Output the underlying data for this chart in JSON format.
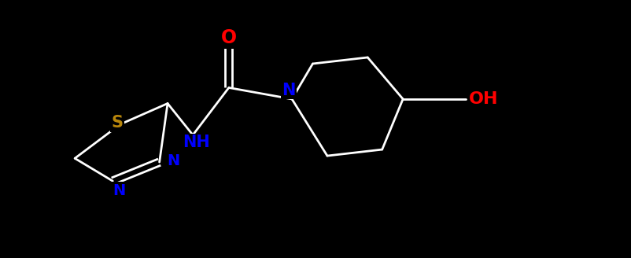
{
  "background_color": "#000000",
  "bond_color": "#ffffff",
  "oxygen_color": "#ff0000",
  "nitrogen_color": "#0000ff",
  "sulfur_color": "#b8860b",
  "figsize": [
    8.03,
    3.28
  ],
  "dpi": 100,
  "lw": 2.0,
  "fs_hetero": 15,
  "xlim": [
    0,
    10
  ],
  "ylim": [
    0,
    4.09
  ]
}
